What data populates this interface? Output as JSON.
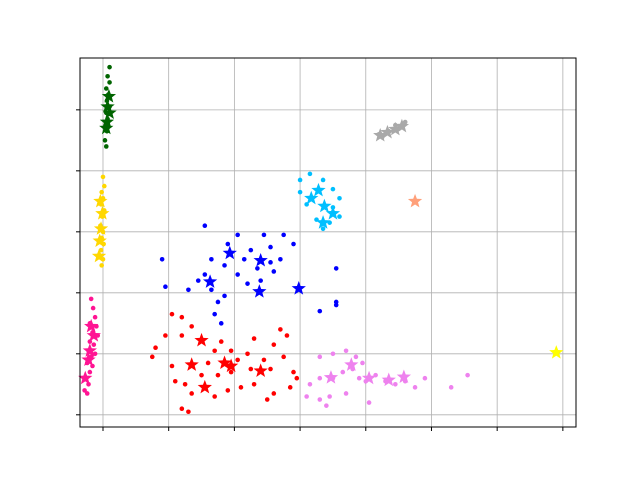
{
  "chart_data": {
    "type": "scatter",
    "title": "",
    "xlabel": "",
    "ylabel": "",
    "x_tick_labels": [],
    "y_tick_labels": [],
    "grid": true,
    "xlim": [
      -0.35,
      7.2
    ],
    "ylim": [
      -0.2,
      5.85
    ],
    "x_ticks": [
      0,
      1,
      2,
      3,
      4,
      5,
      6,
      7
    ],
    "y_ticks": [
      0,
      1,
      2,
      3,
      4,
      5
    ],
    "series": [
      {
        "color": "#006400",
        "points": [
          [
            0.1,
            5.7
          ],
          [
            0.07,
            5.55
          ],
          [
            0.1,
            5.45
          ],
          [
            0.05,
            5.35
          ],
          [
            0.08,
            5.25
          ],
          [
            0.06,
            5.15
          ],
          [
            0.1,
            5.05
          ],
          [
            0.05,
            4.95
          ],
          [
            0.07,
            4.85
          ],
          [
            0.04,
            4.75
          ],
          [
            0.06,
            4.65
          ],
          [
            0.03,
            4.5
          ],
          [
            0.05,
            4.4
          ]
        ],
        "centroids": [
          [
            0.09,
            5.22
          ],
          [
            0.07,
            5.05
          ],
          [
            0.1,
            4.95
          ],
          [
            0.06,
            4.8
          ],
          [
            0.05,
            4.7
          ]
        ]
      },
      {
        "color": "#FFD700",
        "points": [
          [
            0.0,
            3.9
          ],
          [
            0.02,
            3.75
          ],
          [
            -0.02,
            3.65
          ],
          [
            0.0,
            3.55
          ],
          [
            -0.03,
            3.45
          ],
          [
            0.02,
            3.35
          ],
          [
            -0.01,
            3.25
          ],
          [
            -0.04,
            3.1
          ],
          [
            0.0,
            3.0
          ],
          [
            -0.02,
            2.9
          ],
          [
            0.01,
            2.8
          ],
          [
            -0.03,
            2.7
          ],
          [
            0.0,
            2.55
          ],
          [
            -0.02,
            2.45
          ]
        ],
        "centroids": [
          [
            -0.04,
            3.5
          ],
          [
            -0.01,
            3.3
          ],
          [
            -0.03,
            3.05
          ],
          [
            -0.05,
            2.85
          ],
          [
            -0.06,
            2.6
          ]
        ]
      },
      {
        "color": "#FF1493",
        "points": [
          [
            -0.18,
            1.9
          ],
          [
            -0.15,
            1.75
          ],
          [
            -0.12,
            1.6
          ],
          [
            -0.2,
            1.5
          ],
          [
            -0.1,
            1.45
          ],
          [
            -0.16,
            1.35
          ],
          [
            -0.08,
            1.3
          ],
          [
            -0.2,
            1.2
          ],
          [
            -0.14,
            1.15
          ],
          [
            -0.22,
            1.05
          ],
          [
            -0.12,
            1.0
          ],
          [
            -0.18,
            0.95
          ],
          [
            -0.24,
            0.85
          ],
          [
            -0.16,
            0.8
          ],
          [
            -0.2,
            0.7
          ],
          [
            -0.26,
            0.6
          ],
          [
            -0.22,
            0.5
          ],
          [
            -0.28,
            0.4
          ],
          [
            -0.24,
            0.35
          ]
        ],
        "centroids": [
          [
            -0.18,
            1.45
          ],
          [
            -0.14,
            1.3
          ],
          [
            -0.2,
            1.05
          ],
          [
            -0.22,
            0.9
          ],
          [
            -0.27,
            0.6
          ]
        ]
      },
      {
        "color": "#0000FF",
        "points": [
          [
            1.55,
            3.1
          ],
          [
            1.9,
            2.8
          ],
          [
            2.05,
            2.95
          ],
          [
            2.25,
            2.7
          ],
          [
            2.45,
            2.95
          ],
          [
            2.55,
            2.75
          ],
          [
            2.75,
            2.95
          ],
          [
            2.9,
            2.8
          ],
          [
            2.7,
            2.55
          ],
          [
            2.55,
            2.5
          ],
          [
            2.35,
            2.4
          ],
          [
            2.15,
            2.55
          ],
          [
            2.05,
            2.3
          ],
          [
            1.85,
            2.45
          ],
          [
            1.65,
            2.55
          ],
          [
            1.55,
            2.3
          ],
          [
            1.45,
            2.2
          ],
          [
            1.3,
            2.05
          ],
          [
            0.95,
            2.1
          ],
          [
            0.9,
            2.55
          ],
          [
            1.65,
            2.05
          ],
          [
            1.85,
            1.95
          ],
          [
            1.75,
            1.85
          ],
          [
            1.7,
            1.65
          ],
          [
            1.8,
            1.5
          ],
          [
            2.2,
            2.15
          ],
          [
            2.4,
            2.2
          ],
          [
            2.6,
            2.35
          ],
          [
            3.55,
            2.4
          ],
          [
            3.55,
            1.85
          ],
          [
            3.55,
            1.8
          ],
          [
            3.3,
            1.7
          ]
        ],
        "centroids": [
          [
            1.93,
            2.65
          ],
          [
            2.4,
            2.53
          ],
          [
            1.63,
            2.18
          ],
          [
            2.38,
            2.02
          ],
          [
            2.98,
            2.07
          ]
        ]
      },
      {
        "color": "#FF0000",
        "points": [
          [
            1.05,
            1.65
          ],
          [
            1.2,
            1.6
          ],
          [
            1.35,
            1.45
          ],
          [
            1.2,
            1.3
          ],
          [
            0.95,
            1.3
          ],
          [
            0.8,
            1.1
          ],
          [
            0.75,
            0.95
          ],
          [
            1.05,
            0.8
          ],
          [
            1.1,
            0.55
          ],
          [
            1.25,
            0.5
          ],
          [
            1.35,
            0.35
          ],
          [
            1.2,
            0.1
          ],
          [
            1.3,
            0.05
          ],
          [
            1.5,
            0.65
          ],
          [
            1.6,
            0.85
          ],
          [
            1.7,
            1.05
          ],
          [
            1.8,
            1.2
          ],
          [
            1.95,
            1.05
          ],
          [
            2.05,
            0.9
          ],
          [
            2.2,
            1.0
          ],
          [
            2.3,
            1.25
          ],
          [
            2.45,
            0.9
          ],
          [
            2.55,
            0.75
          ],
          [
            2.6,
            1.15
          ],
          [
            2.7,
            1.4
          ],
          [
            2.8,
            1.3
          ],
          [
            2.75,
            0.95
          ],
          [
            2.9,
            0.7
          ],
          [
            2.95,
            0.6
          ],
          [
            2.85,
            0.45
          ],
          [
            2.6,
            0.35
          ],
          [
            2.5,
            0.25
          ],
          [
            2.3,
            0.5
          ],
          [
            2.1,
            0.45
          ],
          [
            1.9,
            0.4
          ],
          [
            1.7,
            0.3
          ],
          [
            1.95,
            0.7
          ],
          [
            1.75,
            0.65
          ],
          [
            2.25,
            0.75
          ]
        ],
        "centroids": [
          [
            1.5,
            1.22
          ],
          [
            1.35,
            0.82
          ],
          [
            1.85,
            0.85
          ],
          [
            1.95,
            0.8
          ],
          [
            2.4,
            0.72
          ],
          [
            1.55,
            0.45
          ]
        ]
      },
      {
        "color": "#00BFFF",
        "points": [
          [
            3.0,
            3.85
          ],
          [
            3.15,
            3.95
          ],
          [
            3.35,
            3.85
          ],
          [
            3.5,
            3.7
          ],
          [
            3.6,
            3.55
          ],
          [
            3.5,
            3.4
          ],
          [
            3.6,
            3.25
          ],
          [
            3.45,
            3.15
          ],
          [
            3.35,
            3.05
          ],
          [
            3.25,
            3.2
          ],
          [
            3.1,
            3.45
          ],
          [
            3.0,
            3.65
          ]
        ],
        "centroids": [
          [
            3.17,
            3.55
          ],
          [
            3.28,
            3.68
          ],
          [
            3.37,
            3.42
          ],
          [
            3.5,
            3.3
          ],
          [
            3.35,
            3.15
          ]
        ]
      },
      {
        "color": "#EE82EE",
        "points": [
          [
            3.3,
            0.95
          ],
          [
            3.5,
            1.0
          ],
          [
            3.7,
            1.05
          ],
          [
            3.85,
            0.95
          ],
          [
            3.95,
            0.85
          ],
          [
            3.8,
            0.75
          ],
          [
            3.65,
            0.7
          ],
          [
            3.5,
            0.6
          ],
          [
            3.3,
            0.6
          ],
          [
            3.15,
            0.5
          ],
          [
            3.1,
            0.3
          ],
          [
            3.3,
            0.25
          ],
          [
            3.45,
            0.3
          ],
          [
            3.4,
            0.15
          ],
          [
            3.9,
            0.6
          ],
          [
            4.0,
            0.55
          ],
          [
            4.15,
            0.65
          ],
          [
            4.3,
            0.55
          ],
          [
            4.45,
            0.5
          ],
          [
            4.6,
            0.55
          ],
          [
            4.75,
            0.45
          ],
          [
            4.9,
            0.6
          ],
          [
            5.3,
            0.45
          ],
          [
            5.55,
            0.65
          ],
          [
            4.05,
            0.2
          ],
          [
            3.7,
            0.35
          ]
        ],
        "centroids": [
          [
            3.47,
            0.61
          ],
          [
            3.78,
            0.82
          ],
          [
            4.05,
            0.6
          ],
          [
            4.35,
            0.57
          ],
          [
            4.58,
            0.62
          ]
        ]
      },
      {
        "color": "#A9A9A9",
        "points": [
          [
            4.2,
            4.6
          ],
          [
            4.35,
            4.65
          ],
          [
            4.5,
            4.7
          ],
          [
            4.45,
            4.75
          ],
          [
            4.6,
            4.8
          ],
          [
            4.25,
            4.55
          ]
        ],
        "centroids": [
          [
            4.22,
            4.58
          ],
          [
            4.33,
            4.63
          ],
          [
            4.45,
            4.68
          ],
          [
            4.55,
            4.73
          ]
        ]
      },
      {
        "color": "#FFA07A",
        "points": [],
        "centroids": [
          [
            4.75,
            3.5
          ]
        ]
      },
      {
        "color": "#FFFF00",
        "points": [],
        "centroids": [
          [
            6.9,
            1.02
          ]
        ]
      }
    ]
  }
}
